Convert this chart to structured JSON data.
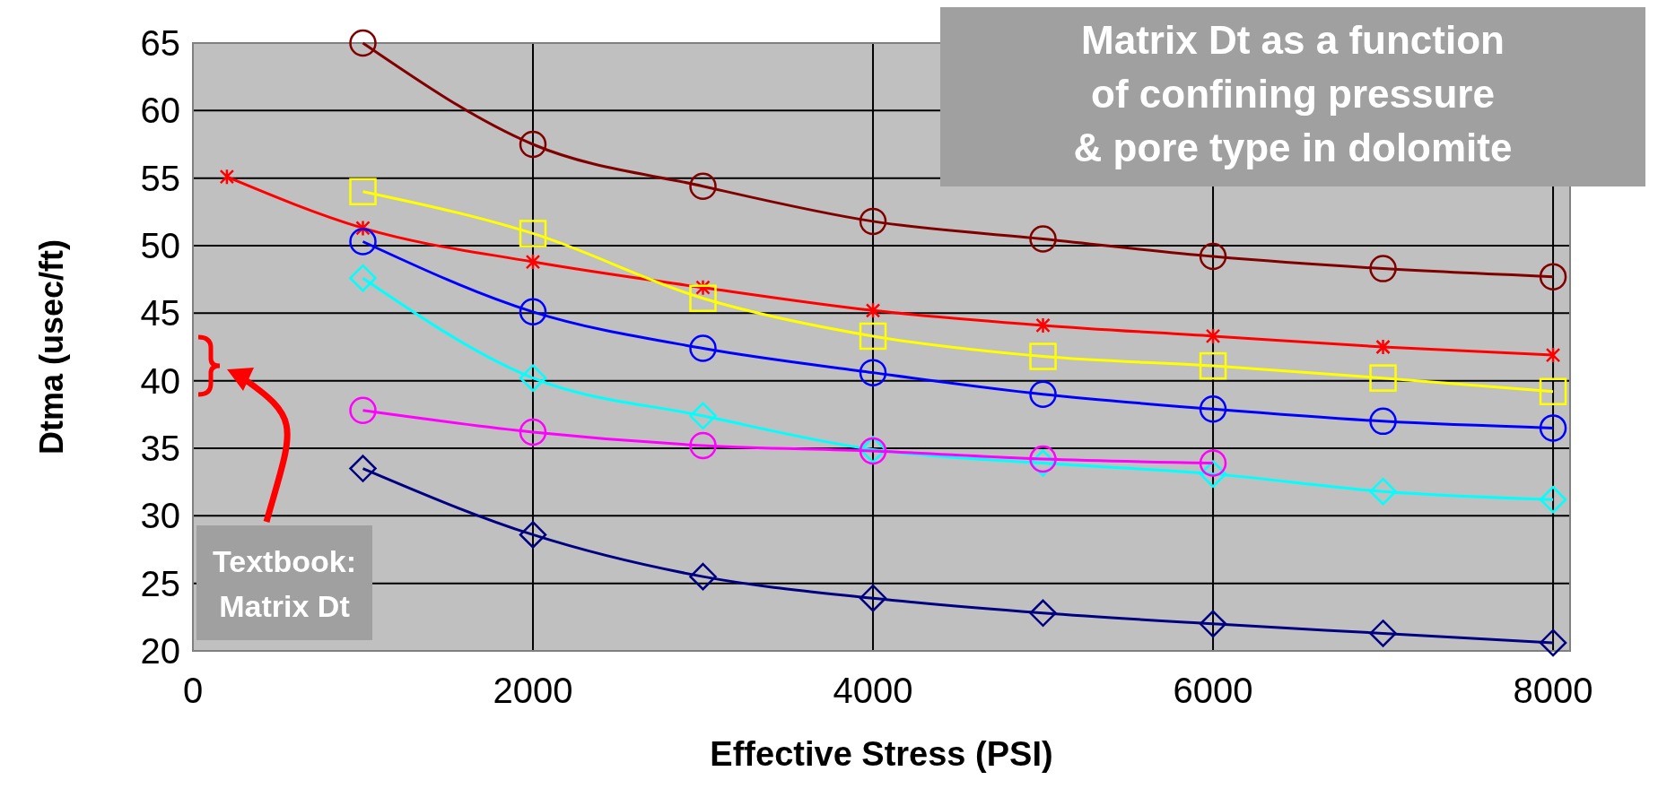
{
  "chart_data": {
    "type": "line",
    "xlabel": "Effective Stress (PSI)",
    "ylabel": "Dtma (usec/ft)",
    "xlim": [
      0,
      8100
    ],
    "xticks": [
      0,
      2000,
      4000,
      6000,
      8000
    ],
    "ylim": [
      20,
      65
    ],
    "yticks": [
      20,
      25,
      30,
      35,
      40,
      45,
      50,
      55,
      60,
      65
    ],
    "grid": true,
    "annotations": [
      "Matrix Dt as a function of confining pressure & pore type in dolomite",
      "Textbook: Matrix Dt"
    ],
    "series": [
      {
        "color": "#800000",
        "marker": "circle",
        "x": [
          1000,
          2000,
          3000,
          4000,
          5000,
          6000,
          7000,
          8000
        ],
        "values": [
          65,
          57.5,
          54.4,
          51.8,
          50.5,
          49.2,
          48.3,
          47.7
        ]
      },
      {
        "color": "#ff0000",
        "marker": "cross",
        "x": [
          200,
          1000,
          2000,
          3000,
          4000,
          5000,
          6000,
          7000,
          8000
        ],
        "values": [
          55.1,
          51.3,
          48.8,
          46.9,
          45.2,
          44.1,
          43.3,
          42.5,
          41.9
        ]
      },
      {
        "color": "#ffff00",
        "marker": "square",
        "x": [
          1000,
          2000,
          3000,
          4000,
          5000,
          6000,
          7000,
          8000
        ],
        "values": [
          54.0,
          50.9,
          46.1,
          43.3,
          41.8,
          41.1,
          40.2,
          39.2
        ]
      },
      {
        "color": "#0000ff",
        "marker": "circle",
        "x": [
          1000,
          2000,
          3000,
          4000,
          5000,
          6000,
          7000,
          8000
        ],
        "values": [
          50.3,
          45.1,
          42.4,
          40.6,
          39.0,
          37.9,
          37.0,
          36.5
        ]
      },
      {
        "color": "#00ffff",
        "marker": "diamond",
        "x": [
          1000,
          2000,
          3000,
          4000,
          5000,
          6000,
          7000,
          8000
        ],
        "values": [
          47.6,
          40.2,
          37.4,
          34.9,
          33.9,
          33.1,
          31.8,
          31.2
        ]
      },
      {
        "color": "#ff00ff",
        "marker": "circle",
        "x": [
          1000,
          2000,
          3000,
          4000,
          5000,
          6000
        ],
        "values": [
          37.8,
          36.2,
          35.2,
          34.8,
          34.2,
          33.9
        ]
      },
      {
        "color": "#000080",
        "marker": "diamond",
        "x": [
          1000,
          2000,
          3000,
          4000,
          5000,
          6000,
          7000,
          8000
        ],
        "values": [
          33.5,
          28.6,
          25.5,
          23.9,
          22.8,
          22.0,
          21.3,
          20.6
        ]
      }
    ]
  }
}
